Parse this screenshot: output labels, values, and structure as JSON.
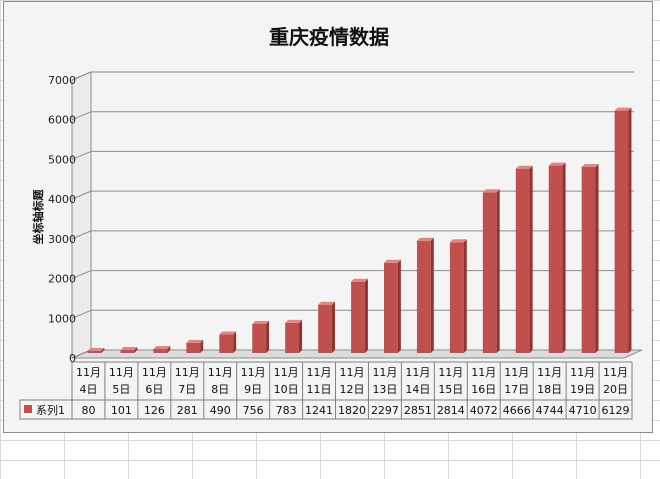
{
  "chart_data": {
    "type": "bar",
    "title": "重庆疫情数据",
    "xlabel": "",
    "ylabel": "坐标轴标题",
    "ylim": [
      0,
      7000
    ],
    "yticks": [
      "0",
      "1000",
      "2000",
      "3000",
      "4000",
      "5000",
      "6000",
      "7000"
    ],
    "grid": true,
    "data_table": true,
    "categories": [
      [
        "11月",
        "4日"
      ],
      [
        "11月",
        "5日"
      ],
      [
        "11月",
        "6日"
      ],
      [
        "11月",
        "7日"
      ],
      [
        "11月",
        "8日"
      ],
      [
        "11月",
        "9日"
      ],
      [
        "11月",
        "10日"
      ],
      [
        "11月",
        "11日"
      ],
      [
        "11月",
        "12日"
      ],
      [
        "11月",
        "13日"
      ],
      [
        "11月",
        "14日"
      ],
      [
        "11月",
        "15日"
      ],
      [
        "11月",
        "16日"
      ],
      [
        "11月",
        "17日"
      ],
      [
        "11月",
        "18日"
      ],
      [
        "11月",
        "19日"
      ],
      [
        "11月",
        "20日"
      ]
    ],
    "series": [
      {
        "name": "系列1",
        "color": "#c0504d",
        "values": [
          80,
          101,
          126,
          281,
          490,
          756,
          783,
          1241,
          1820,
          2297,
          2851,
          2814,
          4072,
          4666,
          4744,
          4710,
          6129
        ]
      }
    ]
  }
}
